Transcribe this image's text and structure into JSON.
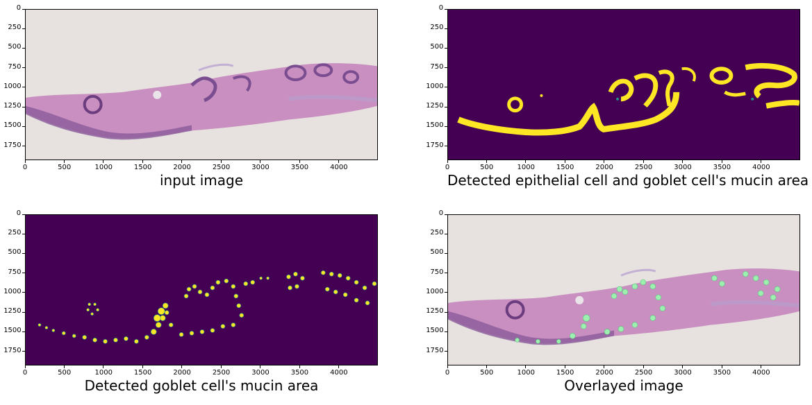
{
  "panels": [
    {
      "id": "input",
      "caption": "input image",
      "xticks": [
        "0",
        "500",
        "1000",
        "1500",
        "2000",
        "2500",
        "3000",
        "3500",
        "4000"
      ],
      "yticks": [
        "0",
        "250",
        "500",
        "750",
        "1000",
        "1250",
        "1500",
        "1750"
      ]
    },
    {
      "id": "epithelial",
      "caption": "Detected epithelial cell and goblet cell's mucin area",
      "xticks": [
        "0",
        "500",
        "1000",
        "1500",
        "2000",
        "2500",
        "3000",
        "3500",
        "4000"
      ],
      "yticks": [
        "0",
        "250",
        "500",
        "750",
        "1000",
        "1250",
        "1500",
        "1750"
      ]
    },
    {
      "id": "goblet",
      "caption": "Detected goblet cell's mucin area",
      "xticks": [
        "0",
        "500",
        "1000",
        "1500",
        "2000",
        "2500",
        "3000",
        "3500",
        "4000"
      ],
      "yticks": [
        "0",
        "250",
        "500",
        "750",
        "1000",
        "1250",
        "1500",
        "1750"
      ]
    },
    {
      "id": "overlay",
      "caption": "Overlayed image",
      "xticks": [
        "0",
        "500",
        "1000",
        "1500",
        "2000",
        "2500",
        "3000",
        "3500",
        "4000"
      ],
      "yticks": [
        "0",
        "250",
        "500",
        "750",
        "1000",
        "1250",
        "1500",
        "1750"
      ]
    }
  ],
  "colors": {
    "tissue_background": "#e7e2df",
    "tissue": "#c98fc0",
    "tissue_dark": "#8a5a9a",
    "mask_background": "#440154",
    "mask_yellow": "#fde725",
    "mask_cyan": "#21918c",
    "overlay_green": "#9ef0b0"
  }
}
